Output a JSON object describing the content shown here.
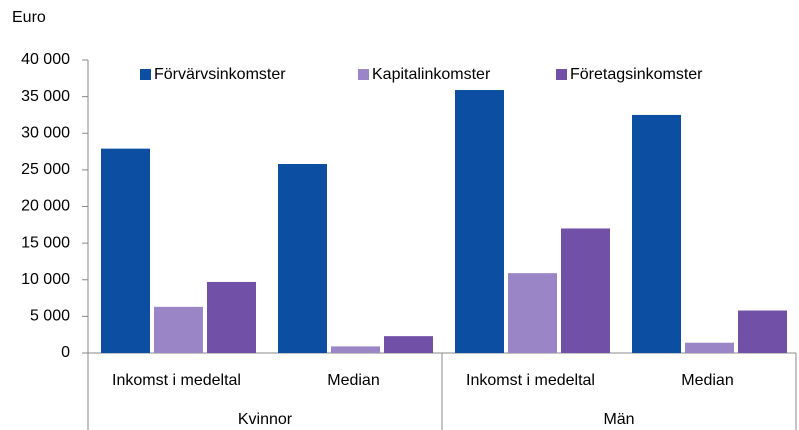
{
  "chart_data": {
    "type": "bar",
    "y_label": "Euro",
    "categories": [
      "Inkomst i medeltal",
      "Median",
      "Inkomst i medeltal",
      "Median"
    ],
    "groups": [
      "Kvinnor",
      "Män"
    ],
    "series": [
      {
        "name": "Förvärvsinkomster",
        "color": "#0b4ea2",
        "values": [
          27900,
          25800,
          35900,
          32500
        ]
      },
      {
        "name": "Kapitalinkomster",
        "color": "#9a86c6",
        "values": [
          6300,
          900,
          10900,
          1400
        ]
      },
      {
        "name": "Företagsinkomster",
        "color": "#7150a8",
        "values": [
          9700,
          2300,
          17000,
          5800
        ]
      }
    ],
    "ylim": [
      0,
      40000
    ],
    "yticks": [
      0,
      {
        "value": 5000,
        "label": "5 000"
      },
      {
        "value": 10000,
        "label": "10 000"
      },
      {
        "value": 15000,
        "label": "15 000"
      },
      {
        "value": 20000,
        "label": "20 000"
      },
      {
        "value": 25000,
        "label": "25 000"
      },
      {
        "value": 30000,
        "label": "30 000"
      },
      {
        "value": 35000,
        "label": "35 000"
      },
      {
        "value": 40000,
        "label": "40 000"
      }
    ],
    "legend": "top",
    "grid": false
  }
}
